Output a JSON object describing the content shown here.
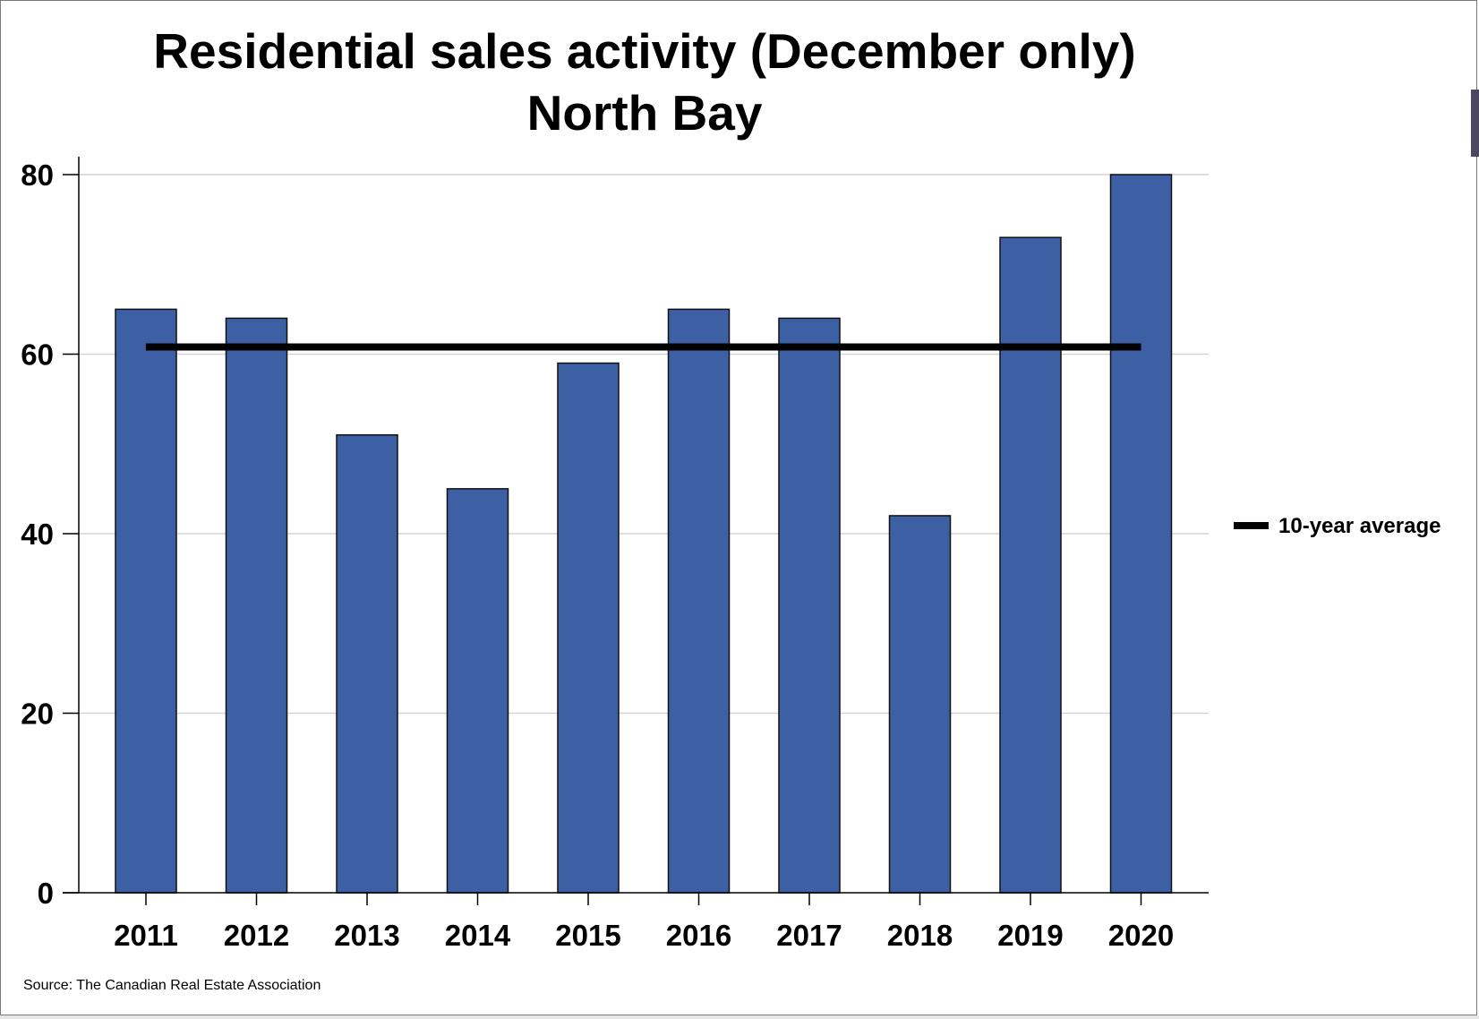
{
  "chart_data": {
    "type": "bar",
    "title": "Residential sales activity (December only)",
    "subtitle": "North Bay",
    "categories": [
      "2011",
      "2012",
      "2013",
      "2014",
      "2015",
      "2016",
      "2017",
      "2018",
      "2019",
      "2020"
    ],
    "series": [
      {
        "values": [
          65,
          64,
          51,
          45,
          59,
          65,
          64,
          42,
          73,
          80
        ],
        "color": "#3d5fa3"
      }
    ],
    "reference_line": {
      "name": "10-year average",
      "value": 60.8,
      "color": "#000000"
    },
    "ylim": [
      0,
      80
    ],
    "yticks": [
      0,
      20,
      40,
      60,
      80
    ],
    "grid": true,
    "legend_position": "right",
    "source": "Source: The Canadian Real Estate Association"
  }
}
